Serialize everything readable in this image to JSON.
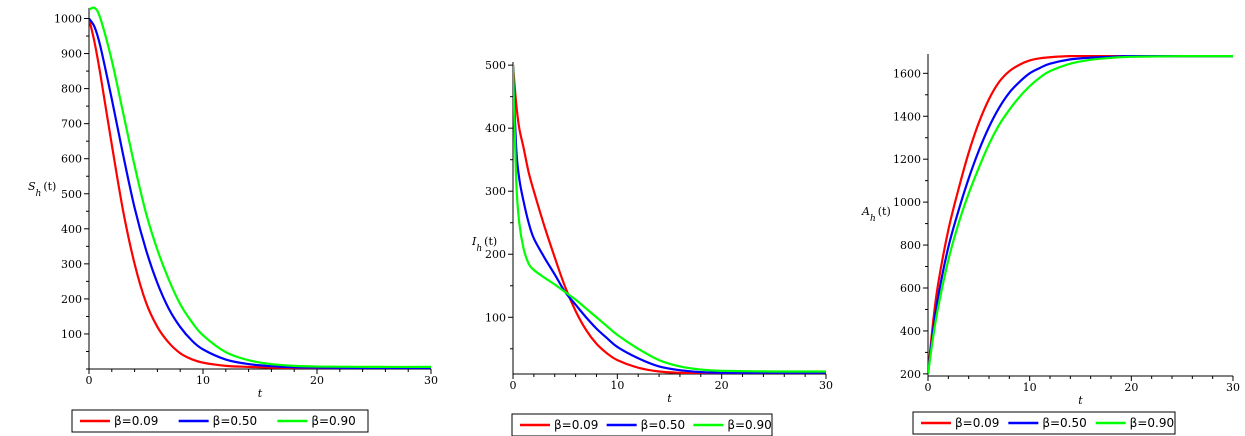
{
  "chart_data": [
    {
      "type": "line",
      "ylabel_main": "S",
      "ylabel_sub": "h",
      "ylabel_arg": "(t)",
      "xlabel": "t",
      "xlim": [
        0,
        30
      ],
      "ylim": [
        0,
        1030
      ],
      "xticks": [
        0,
        10,
        20,
        30
      ],
      "yticks": [
        100,
        200,
        300,
        400,
        500,
        600,
        700,
        800,
        900,
        1000
      ],
      "x": [
        0,
        0.5,
        1,
        2,
        3,
        4,
        5,
        6,
        7,
        8,
        9,
        10,
        12,
        14,
        16,
        18,
        20,
        25,
        30
      ],
      "series": [
        {
          "name": "β=0.09",
          "color": "#ff0000",
          "values": [
            1000,
            930,
            840,
            640,
            450,
            300,
            190,
            120,
            75,
            45,
            28,
            18,
            9,
            6,
            4,
            3,
            2,
            2,
            2
          ]
        },
        {
          "name": "β=0.50",
          "color": "#0000ff",
          "values": [
            1000,
            975,
            920,
            770,
            610,
            460,
            340,
            245,
            172,
            120,
            82,
            56,
            27,
            14,
            8,
            5,
            4,
            3,
            3
          ]
        },
        {
          "name": "β=0.90",
          "color": "#00ff00",
          "values": [
            1025,
            1030,
            1000,
            880,
            730,
            580,
            445,
            340,
            255,
            185,
            135,
            96,
            48,
            25,
            14,
            9,
            7,
            6,
            6
          ]
        }
      ]
    },
    {
      "type": "line",
      "ylabel_main": "I",
      "ylabel_sub": "h",
      "ylabel_arg": "(t)",
      "xlabel": "t",
      "xlim": [
        0,
        30
      ],
      "ylim": [
        10,
        505
      ],
      "xticks": [
        0,
        10,
        20,
        30
      ],
      "yticks": [
        100,
        200,
        300,
        400,
        500
      ],
      "x": [
        0,
        0.3,
        0.6,
        1,
        1.5,
        2,
        3,
        4,
        5,
        6,
        7,
        8,
        9,
        10,
        12,
        14,
        16,
        18,
        20,
        25,
        30
      ],
      "series": [
        {
          "name": "β=0.09",
          "color": "#ff0000",
          "values": [
            500,
            440,
            400,
            370,
            330,
            300,
            245,
            195,
            148,
            110,
            80,
            58,
            43,
            32,
            20,
            14,
            12,
            11,
            11,
            11,
            11
          ]
        },
        {
          "name": "β=0.50",
          "color": "#0000ff",
          "values": [
            500,
            370,
            320,
            285,
            250,
            225,
            195,
            168,
            140,
            120,
            100,
            82,
            67,
            53,
            35,
            22,
            16,
            13,
            12,
            12,
            12
          ]
        },
        {
          "name": "β=0.90",
          "color": "#00ff00",
          "values": [
            500,
            320,
            250,
            210,
            185,
            175,
            163,
            152,
            140,
            128,
            114,
            100,
            86,
            72,
            50,
            32,
            22,
            17,
            15,
            14,
            14
          ]
        }
      ]
    },
    {
      "type": "line",
      "ylabel_main": "A",
      "ylabel_sub": "h",
      "ylabel_arg": "(t)",
      "xlabel": "t",
      "xlim": [
        0,
        30
      ],
      "ylim": [
        190,
        1690
      ],
      "xticks": [
        0,
        10,
        20,
        30
      ],
      "yticks": [
        200,
        400,
        600,
        800,
        1000,
        1200,
        1400,
        1600
      ],
      "x": [
        0,
        0.5,
        1,
        2,
        3,
        4,
        5,
        6,
        7,
        8,
        9,
        10,
        11,
        12,
        14,
        16,
        18,
        20,
        25,
        30
      ],
      "series": [
        {
          "name": "β=0.09",
          "color": "#ff0000",
          "values": [
            200,
            440,
            620,
            870,
            1060,
            1230,
            1370,
            1480,
            1560,
            1610,
            1640,
            1660,
            1670,
            1675,
            1680,
            1680,
            1680,
            1680,
            1680,
            1680
          ]
        },
        {
          "name": "β=0.50",
          "color": "#0000ff",
          "values": [
            200,
            400,
            560,
            790,
            960,
            1110,
            1240,
            1350,
            1440,
            1510,
            1560,
            1600,
            1625,
            1645,
            1665,
            1673,
            1677,
            1680,
            1680,
            1680
          ]
        },
        {
          "name": "β=0.90",
          "color": "#00ff00",
          "values": [
            200,
            370,
            510,
            730,
            900,
            1040,
            1160,
            1270,
            1360,
            1430,
            1490,
            1540,
            1580,
            1610,
            1645,
            1663,
            1672,
            1677,
            1680,
            1680
          ]
        }
      ]
    }
  ],
  "legend": {
    "items": [
      {
        "label": "β=0.09",
        "color": "#ff0000"
      },
      {
        "label": "β=0.50",
        "color": "#0000ff"
      },
      {
        "label": "β=0.90",
        "color": "#00ff00"
      }
    ]
  }
}
